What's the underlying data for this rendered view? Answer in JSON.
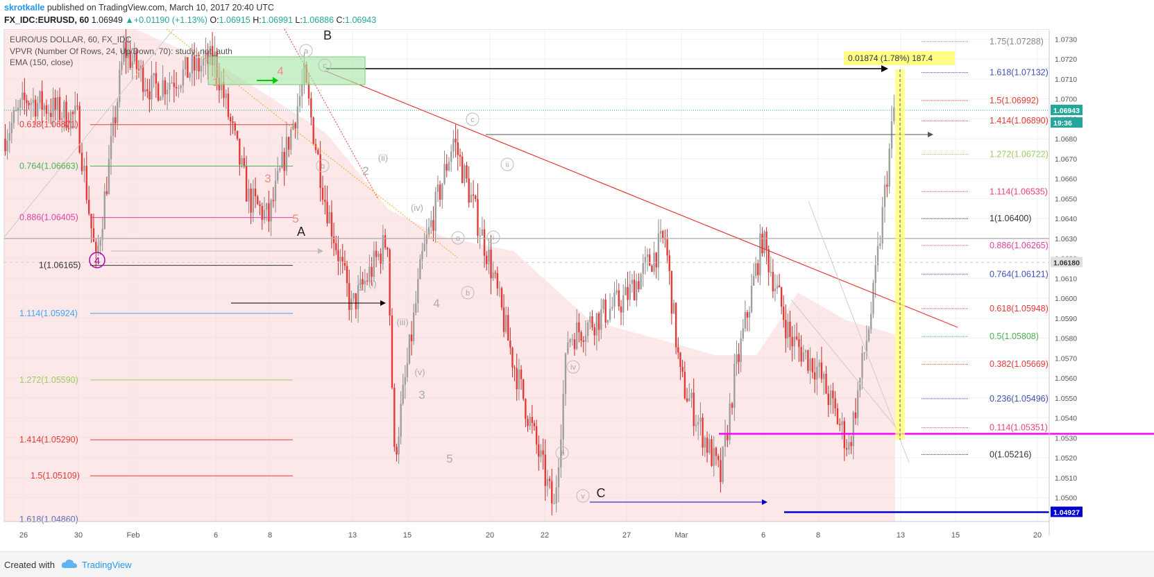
{
  "header": {
    "author": "skrotkalle",
    "published": "published on TradingView.com, March 10, 2017 20:40 UTC",
    "symbol": "FX_IDC:EURUSD, 60",
    "last": "1.06949",
    "change": "+0.01190 (+1.13%)",
    "o_label": "O:",
    "o": "1.06915",
    "h_label": "H:",
    "h": "1.06991",
    "l_label": "L:",
    "l": "1.06886",
    "c_label": "C:",
    "c": "1.06943"
  },
  "legend": {
    "title": "EURO/US DOLLAR, 60, FX_IDC",
    "vpvr": "VPVR (Number Of Rows, 24, Up/Down, 70): study_not_auth",
    "ema": "EMA (150, close)"
  },
  "footer": {
    "created": "Created with",
    "brand": "TradingView"
  },
  "colors": {
    "bull": "#26a69a",
    "bear": "#e53935",
    "accent": "#2196f3",
    "magenta": "#ff00ff",
    "blue": "#0000cc",
    "yellow": "#ffff66"
  },
  "chart_data": {
    "type": "candlestick",
    "instrument": "EURUSD",
    "interval": "60",
    "x_ticks": [
      "26",
      "30",
      "Feb",
      "6",
      "8",
      "13",
      "15",
      "20",
      "22",
      "27",
      "Mar",
      "6",
      "8",
      "13",
      "15",
      "20"
    ],
    "y_ticks": [
      "1.0500",
      "1.0510",
      "1.0520",
      "1.0530",
      "1.0540",
      "1.0550",
      "1.0560",
      "1.0570",
      "1.0580",
      "1.0590",
      "1.0600",
      "1.0610",
      "1.0620",
      "1.0630",
      "1.0640",
      "1.0650",
      "1.0660",
      "1.0670",
      "1.0680",
      "1.0690",
      "1.0700",
      "1.0710",
      "1.0720",
      "1.0730"
    ],
    "ylim": [
      1.0488,
      1.0735
    ],
    "price_labels": [
      {
        "text": "1.06943",
        "value": 1.06943,
        "color": "#26a69a"
      },
      {
        "text": "19:36",
        "value": 1.0688,
        "color": "#26a69a"
      },
      {
        "text": "1.06180",
        "value": 1.0618,
        "color": "#e0e0e0"
      },
      {
        "text": "1.04927",
        "value": 1.04927,
        "color": "#0000cc"
      }
    ],
    "price_path": [
      {
        "t": "26",
        "p": 1.068
      },
      {
        "t": "27",
        "p": 1.07
      },
      {
        "t": "30",
        "p": 1.069
      },
      {
        "t": "31",
        "p": 1.0617
      },
      {
        "t": "Feb 2",
        "p": 1.0725
      },
      {
        "t": "Feb 3",
        "p": 1.0705
      },
      {
        "t": "6",
        "p": 1.072
      },
      {
        "t": "7",
        "p": 1.065
      },
      {
        "t": "8",
        "p": 1.064
      },
      {
        "t": "9",
        "p": 1.071
      },
      {
        "t": "10",
        "p": 1.065
      },
      {
        "t": "13",
        "p": 1.0595
      },
      {
        "t": "14",
        "p": 1.063
      },
      {
        "t": "15",
        "p": 1.052
      },
      {
        "t": "16",
        "p": 1.062
      },
      {
        "t": "17",
        "p": 1.068
      },
      {
        "t": "20",
        "p": 1.062
      },
      {
        "t": "21",
        "p": 1.057
      },
      {
        "t": "22",
        "p": 1.0494
      },
      {
        "t": "23",
        "p": 1.058
      },
      {
        "t": "27",
        "p": 1.06
      },
      {
        "t": "28",
        "p": 1.063
      },
      {
        "t": "Mar",
        "p": 1.056
      },
      {
        "t": "2",
        "p": 1.051
      },
      {
        "t": "3",
        "p": 1.056
      },
      {
        "t": "6",
        "p": 1.063
      },
      {
        "t": "7",
        "p": 1.058
      },
      {
        "t": "8",
        "p": 1.0565
      },
      {
        "t": "9",
        "p": 1.0525
      },
      {
        "t": "10",
        "p": 1.06
      },
      {
        "t": "10b",
        "p": 1.06943
      }
    ],
    "left_fib": [
      {
        "label": "0.618(1.06871)",
        "value": 1.06871,
        "color": "#e53935"
      },
      {
        "label": "0.764(1.06663)",
        "value": 1.06663,
        "color": "#4caf50"
      },
      {
        "label": "0.886(1.06405)",
        "value": 1.06405,
        "color": "#e040a0"
      },
      {
        "label": "1(1.06165)",
        "value": 1.06165,
        "color": "#333333"
      },
      {
        "label": "1.114(1.05924)",
        "value": 1.05924,
        "color": "#42a5f5"
      },
      {
        "label": "1.272(1.05590)",
        "value": 1.0559,
        "color": "#9ccc65"
      },
      {
        "label": "1.414(1.05290)",
        "value": 1.0529,
        "color": "#e53935"
      },
      {
        "label": "1.5(1.05109)",
        "value": 1.05109,
        "color": "#e53935"
      },
      {
        "label": "1.618(1.04860)",
        "value": 1.0486,
        "color": "#5c6bc0"
      }
    ],
    "right_fib": [
      {
        "label": "1.75(1.07288)",
        "value": 1.07288,
        "color": "#888888"
      },
      {
        "label": "1.618(1.07132)",
        "value": 1.07132,
        "color": "#3f51b5"
      },
      {
        "label": "1.5(1.06992)",
        "value": 1.06992,
        "color": "#e53935"
      },
      {
        "label": "1.414(1.06890)",
        "value": 1.0689,
        "color": "#e53935"
      },
      {
        "label": "1.272(1.06722)",
        "value": 1.06722,
        "color": "#9ccc65"
      },
      {
        "label": "1.114(1.06535)",
        "value": 1.06535,
        "color": "#ec407a"
      },
      {
        "label": "1(1.06400)",
        "value": 1.064,
        "color": "#333333"
      },
      {
        "label": "0.886(1.06265)",
        "value": 1.06265,
        "color": "#e040a0"
      },
      {
        "label": "0.764(1.06121)",
        "value": 1.06121,
        "color": "#3f51b5"
      },
      {
        "label": "0.618(1.05948)",
        "value": 1.05948,
        "color": "#e53935"
      },
      {
        "label": "0.5(1.05808)",
        "value": 1.05808,
        "color": "#4caf50"
      },
      {
        "label": "0.382(1.05669)",
        "value": 1.05669,
        "color": "#e53935"
      },
      {
        "label": "0.236(1.05496)",
        "value": 1.05496,
        "color": "#3f51b5"
      },
      {
        "label": "0.114(1.05351)",
        "value": 1.05351,
        "color": "#ec407a"
      },
      {
        "label": "0(1.05216)",
        "value": 1.05216,
        "color": "#333333"
      }
    ],
    "measure_label": "0.01874 (1.78%) 187.4",
    "wave_labels": [
      "B",
      "A",
      "C",
      "1",
      "2",
      "3",
      "4",
      "5",
      "a",
      "b",
      "c",
      "i",
      "ii",
      "iii",
      "iv",
      "v",
      "(i)",
      "(ii)",
      "(iii)",
      "(iv)",
      "(v)"
    ],
    "grid": true,
    "legend_position": "top-left"
  }
}
